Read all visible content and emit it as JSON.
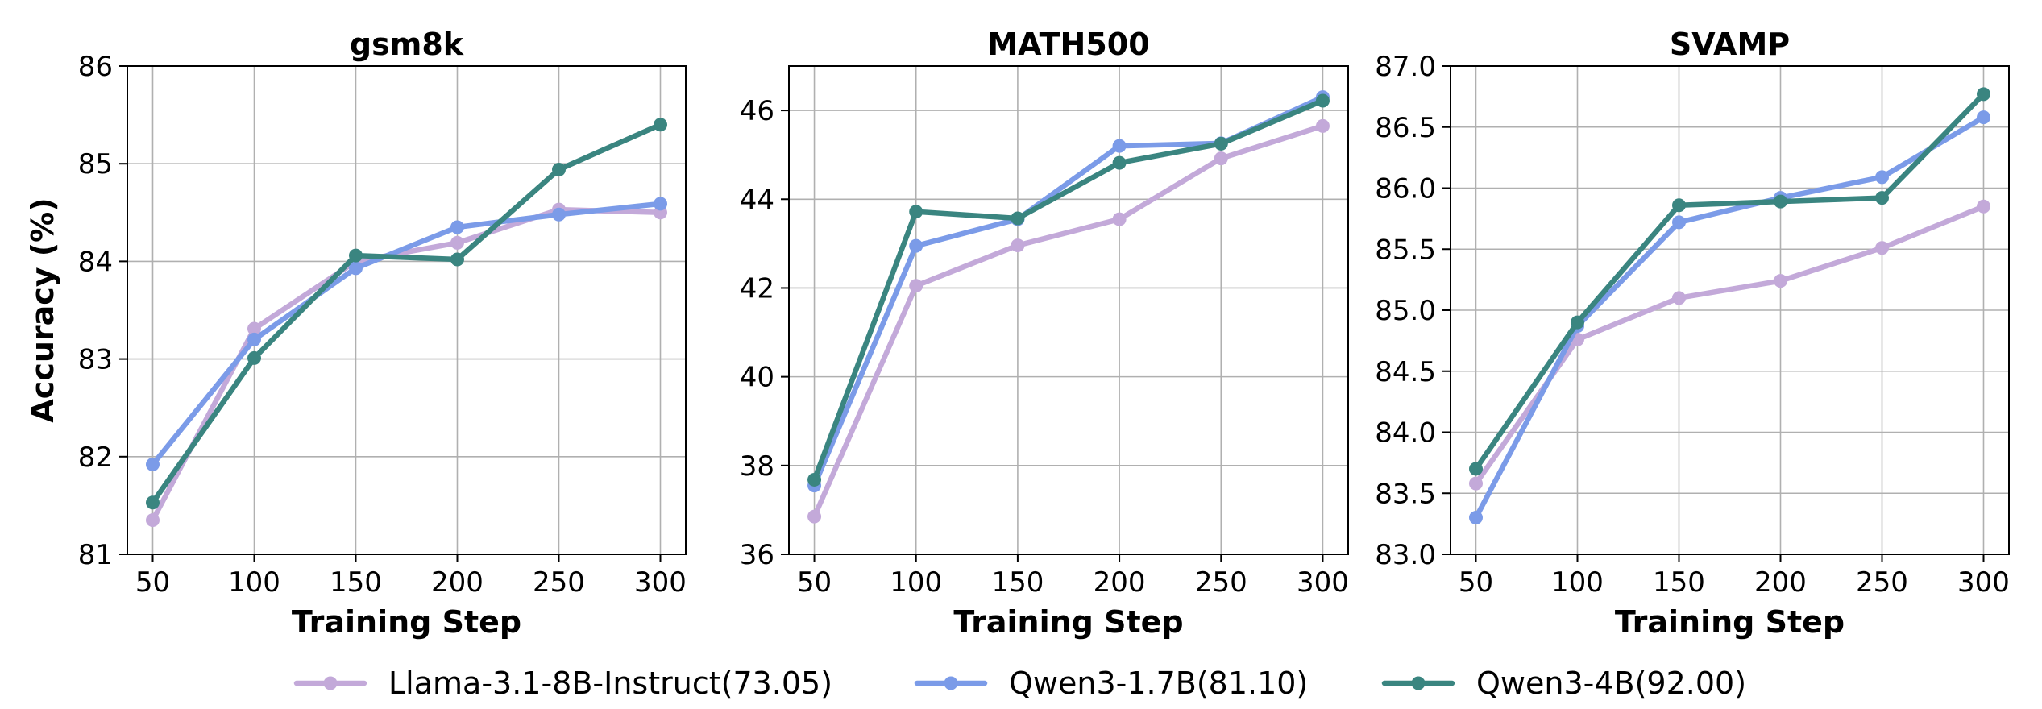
{
  "chart_data": [
    {
      "type": "line",
      "title": "gsm8k",
      "xlabel": "Training Step",
      "ylabel": "Accuracy (%)",
      "x": [
        50,
        100,
        150,
        200,
        250,
        300
      ],
      "xticks": [
        50,
        100,
        150,
        200,
        250,
        300
      ],
      "ylim": [
        81,
        86
      ],
      "yticks": [
        81,
        82,
        83,
        84,
        85,
        86
      ],
      "ytick_labels": [
        "81",
        "82",
        "83",
        "84",
        "85",
        "86"
      ],
      "grid": true,
      "series": [
        {
          "name": "Llama-3.1-8B-Instruct(73.05)",
          "color": "#c3a9d9",
          "values": [
            81.35,
            83.31,
            84.0,
            84.19,
            84.53,
            84.5
          ]
        },
        {
          "name": "Qwen3-1.7B(81.10)",
          "color": "#7b9be8",
          "values": [
            81.92,
            83.2,
            83.93,
            84.35,
            84.48,
            84.59
          ]
        },
        {
          "name": "Qwen3-4B(92.00)",
          "color": "#3a8580",
          "values": [
            81.53,
            83.01,
            84.06,
            84.02,
            84.94,
            85.4
          ]
        }
      ]
    },
    {
      "type": "line",
      "title": "MATH500",
      "xlabel": "Training Step",
      "ylabel": "",
      "x": [
        50,
        100,
        150,
        200,
        250,
        300
      ],
      "xticks": [
        50,
        100,
        150,
        200,
        250,
        300
      ],
      "ylim": [
        36,
        47
      ],
      "yticks": [
        36,
        38,
        40,
        42,
        44,
        46
      ],
      "ytick_labels": [
        "36",
        "38",
        "40",
        "42",
        "44",
        "46"
      ],
      "grid": true,
      "series": [
        {
          "name": "Llama-3.1-8B-Instruct(73.05)",
          "color": "#c3a9d9",
          "values": [
            36.85,
            42.05,
            42.96,
            43.55,
            44.92,
            45.65
          ]
        },
        {
          "name": "Qwen3-1.7B(81.10)",
          "color": "#7b9be8",
          "values": [
            37.55,
            42.95,
            43.55,
            45.2,
            45.26,
            46.3
          ]
        },
        {
          "name": "Qwen3-4B(92.00)",
          "color": "#3a8580",
          "values": [
            37.68,
            43.72,
            43.57,
            44.82,
            45.25,
            46.22
          ]
        }
      ]
    },
    {
      "type": "line",
      "title": "SVAMP",
      "xlabel": "Training Step",
      "ylabel": "",
      "x": [
        50,
        100,
        150,
        200,
        250,
        300
      ],
      "xticks": [
        50,
        100,
        150,
        200,
        250,
        300
      ],
      "ylim": [
        83.0,
        87.0
      ],
      "yticks": [
        83.0,
        83.5,
        84.0,
        84.5,
        85.0,
        85.5,
        86.0,
        86.5,
        87.0
      ],
      "ytick_labels": [
        "83.0",
        "83.5",
        "84.0",
        "84.5",
        "85.0",
        "85.5",
        "86.0",
        "86.5",
        "87.0"
      ],
      "grid": true,
      "series": [
        {
          "name": "Llama-3.1-8B-Instruct(73.05)",
          "color": "#c3a9d9",
          "values": [
            83.58,
            84.76,
            85.1,
            85.24,
            85.51,
            85.85
          ]
        },
        {
          "name": "Qwen3-1.7B(81.10)",
          "color": "#7b9be8",
          "values": [
            83.3,
            84.87,
            85.72,
            85.92,
            86.09,
            86.58
          ]
        },
        {
          "name": "Qwen3-4B(92.00)",
          "color": "#3a8580",
          "values": [
            83.7,
            84.9,
            85.86,
            85.89,
            85.92,
            86.77
          ]
        }
      ]
    }
  ],
  "legend": {
    "placement": "bottom-center",
    "entries": [
      {
        "label": "Llama-3.1-8B-Instruct(73.05)",
        "color": "#c3a9d9"
      },
      {
        "label": "Qwen3-1.7B(81.10)",
        "color": "#7b9be8"
      },
      {
        "label": "Qwen3-4B(92.00)",
        "color": "#3a8580"
      }
    ]
  }
}
